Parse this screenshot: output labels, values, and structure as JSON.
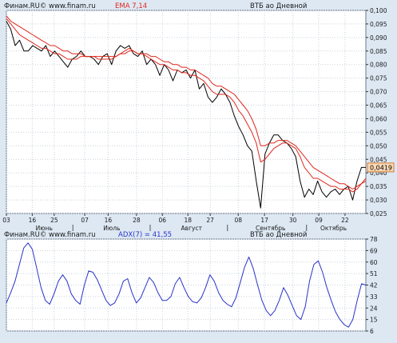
{
  "top_panel": {
    "source": "Финам.RU© www.finam.ru",
    "indicator": "EMA 7,14",
    "instrument": "ВТБ ао Дневной",
    "last_value_label": "0,0419"
  },
  "bottom_panel": {
    "source": "Финам.RU© www.finam.ru",
    "indicator": "ADX(7) = 41,55",
    "instrument": "ВТБ ао Дневной"
  },
  "colors": {
    "background": "#dde8f3",
    "plot_background": "#ffffff",
    "grid": "#c8d2dc",
    "price_line": "#000000",
    "ema_line": "#e0281e",
    "adx_line": "#2a33c8",
    "last_label_fill": "#fcd9b6"
  },
  "chart_data": [
    {
      "type": "line",
      "x_day_labels": [
        "03",
        "16",
        "25",
        "07",
        "16",
        "28",
        "06",
        "18",
        "27",
        "08",
        "17",
        "30",
        "09",
        "22"
      ],
      "month_labels": [
        "Июнь",
        "Июль",
        "Август",
        "Сентябрь",
        "Октябрь"
      ],
      "y_tick_labels": [
        "0,100",
        "0,095",
        "0,090",
        "0,085",
        "0,080",
        "0,075",
        "0,070",
        "0,065",
        "0,060",
        "0,055",
        "0,050",
        "0,045",
        "0,040",
        "0,035",
        "0,030",
        "0,025"
      ],
      "ylim": [
        0.025,
        0.1
      ],
      "grid": true,
      "series": [
        {
          "role": "price",
          "values": [
            0.096,
            0.093,
            0.087,
            0.089,
            0.085,
            0.085,
            0.087,
            0.086,
            0.085,
            0.087,
            0.083,
            0.085,
            0.083,
            0.081,
            0.079,
            0.082,
            0.083,
            0.085,
            0.083,
            0.083,
            0.082,
            0.08,
            0.083,
            0.084,
            0.08,
            0.085,
            0.087,
            0.086,
            0.087,
            0.084,
            0.083,
            0.085,
            0.08,
            0.082,
            0.08,
            0.076,
            0.08,
            0.078,
            0.074,
            0.078,
            0.077,
            0.078,
            0.075,
            0.078,
            0.071,
            0.073,
            0.068,
            0.066,
            0.068,
            0.071,
            0.069,
            0.066,
            0.061,
            0.057,
            0.054,
            0.05,
            0.048,
            0.037,
            0.027,
            0.047,
            0.051,
            0.054,
            0.054,
            0.052,
            0.051,
            0.049,
            0.046,
            0.037,
            0.031,
            0.034,
            0.032,
            0.037,
            0.033,
            0.031,
            0.033,
            0.034,
            0.032,
            0.034,
            0.035,
            0.03,
            0.037,
            0.042,
            0.042
          ]
        },
        {
          "role": "ema7",
          "values": [
            0.097,
            0.095,
            0.093,
            0.091,
            0.09,
            0.089,
            0.088,
            0.087,
            0.086,
            0.086,
            0.085,
            0.084,
            0.084,
            0.083,
            0.082,
            0.082,
            0.082,
            0.083,
            0.083,
            0.083,
            0.083,
            0.082,
            0.082,
            0.082,
            0.082,
            0.083,
            0.084,
            0.085,
            0.086,
            0.085,
            0.084,
            0.084,
            0.083,
            0.082,
            0.081,
            0.08,
            0.08,
            0.079,
            0.078,
            0.078,
            0.077,
            0.077,
            0.076,
            0.076,
            0.075,
            0.074,
            0.072,
            0.07,
            0.069,
            0.069,
            0.069,
            0.068,
            0.066,
            0.063,
            0.061,
            0.058,
            0.055,
            0.051,
            0.044,
            0.045,
            0.047,
            0.049,
            0.05,
            0.051,
            0.051,
            0.05,
            0.049,
            0.046,
            0.042,
            0.04,
            0.038,
            0.038,
            0.037,
            0.036,
            0.035,
            0.035,
            0.034,
            0.034,
            0.034,
            0.033,
            0.034,
            0.036,
            0.038
          ]
        },
        {
          "role": "ema14",
          "values": [
            0.098,
            0.096,
            0.095,
            0.094,
            0.093,
            0.092,
            0.091,
            0.09,
            0.089,
            0.088,
            0.087,
            0.087,
            0.086,
            0.085,
            0.085,
            0.084,
            0.084,
            0.084,
            0.083,
            0.083,
            0.083,
            0.083,
            0.083,
            0.083,
            0.083,
            0.083,
            0.084,
            0.084,
            0.085,
            0.085,
            0.084,
            0.084,
            0.084,
            0.083,
            0.083,
            0.082,
            0.081,
            0.081,
            0.08,
            0.08,
            0.079,
            0.079,
            0.078,
            0.078,
            0.077,
            0.076,
            0.075,
            0.073,
            0.072,
            0.072,
            0.071,
            0.07,
            0.069,
            0.067,
            0.065,
            0.063,
            0.06,
            0.056,
            0.05,
            0.05,
            0.051,
            0.051,
            0.052,
            0.052,
            0.052,
            0.051,
            0.05,
            0.048,
            0.046,
            0.044,
            0.042,
            0.041,
            0.04,
            0.039,
            0.038,
            0.037,
            0.036,
            0.036,
            0.035,
            0.034,
            0.035,
            0.036,
            0.037
          ]
        }
      ]
    },
    {
      "type": "line",
      "y_tick_labels": [
        "78",
        "69",
        "60",
        "51",
        "42",
        "33",
        "24",
        "15",
        "6"
      ],
      "ylim": [
        6,
        78
      ],
      "grid": true,
      "series": [
        {
          "role": "adx",
          "values": [
            28,
            36,
            45,
            58,
            71,
            75,
            70,
            55,
            40,
            30,
            27,
            35,
            45,
            50,
            45,
            35,
            30,
            27,
            42,
            53,
            52,
            46,
            38,
            30,
            26,
            28,
            35,
            45,
            47,
            36,
            28,
            32,
            40,
            48,
            44,
            36,
            30,
            30,
            33,
            43,
            48,
            40,
            33,
            29,
            28,
            32,
            40,
            50,
            45,
            36,
            30,
            27,
            25,
            32,
            44,
            56,
            64,
            55,
            42,
            30,
            22,
            18,
            22,
            30,
            40,
            34,
            26,
            18,
            15,
            25,
            45,
            58,
            61,
            52,
            40,
            30,
            21,
            15,
            11,
            9,
            15,
            30,
            43,
            42
          ]
        }
      ]
    }
  ]
}
